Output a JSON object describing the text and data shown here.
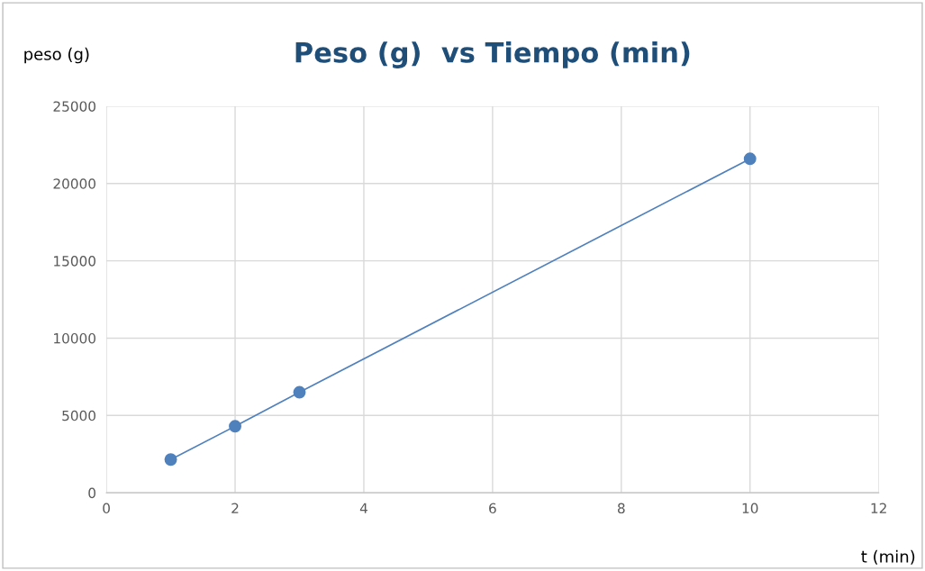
{
  "chart_data": {
    "type": "line",
    "title": "Peso (g)  vs Tiempo (min)",
    "xlabel": "t (min)",
    "ylabel": "peso (g)",
    "x": [
      1,
      2,
      3,
      10
    ],
    "series": [
      {
        "color": "#4f81bd",
        "values": [
          2150,
          4300,
          6500,
          21600
        ]
      }
    ],
    "xlim": [
      0,
      12
    ],
    "xticks": [
      0,
      2,
      4,
      6,
      8,
      10,
      12
    ],
    "ylim": [
      0,
      25000
    ],
    "yticks": [
      0,
      5000,
      10000,
      15000,
      20000,
      25000
    ],
    "grid": true,
    "marker": "circle",
    "line_style": "solid"
  }
}
